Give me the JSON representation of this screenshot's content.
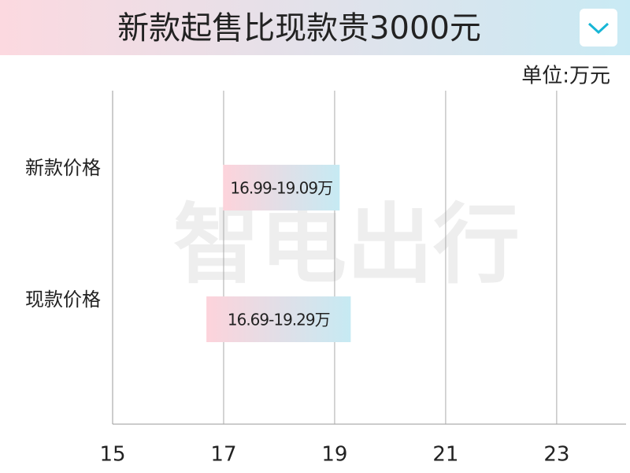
{
  "chart_data": {
    "type": "range-bar",
    "title": "新款起售比现款贵3000元",
    "unit": "单位:万元",
    "watermark": "智电出行",
    "categories": [
      "新款价格",
      "现款价格"
    ],
    "values": [
      [
        16.99,
        19.09
      ],
      [
        16.69,
        19.29
      ]
    ],
    "value_labels": [
      "16.99-19.09万",
      "16.69-19.29万"
    ],
    "colors": [
      "#fdd3db",
      "#c6eaf3"
    ],
    "xlim": [
      15,
      24.25
    ],
    "xticks": [
      15,
      17,
      19,
      21,
      23
    ],
    "grid": true
  }
}
